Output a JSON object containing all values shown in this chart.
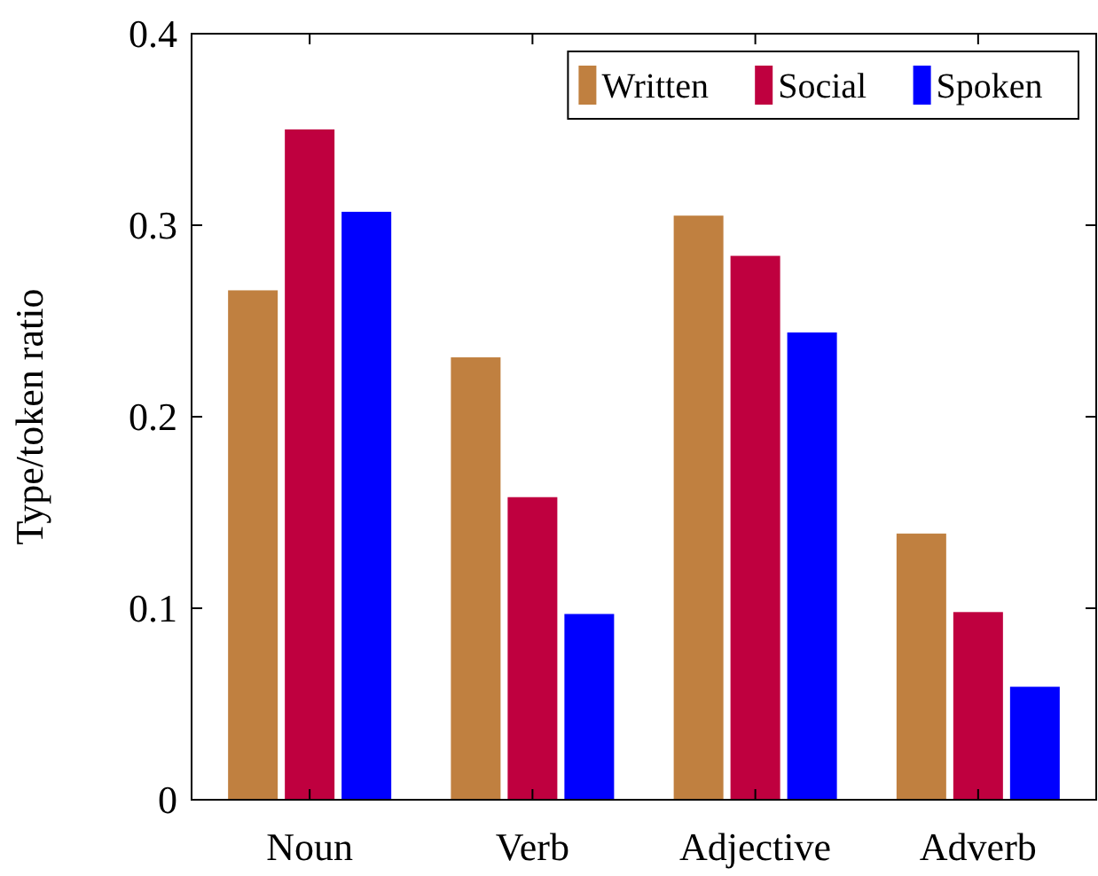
{
  "chart_data": {
    "type": "bar",
    "ylabel": "Type/token ratio",
    "categories": [
      "Noun",
      "Verb",
      "Adjective",
      "Adverb"
    ],
    "series": [
      {
        "name": "Written",
        "color": "#c08040",
        "values": [
          0.266,
          0.231,
          0.305,
          0.139
        ]
      },
      {
        "name": "Social",
        "color": "#bf003f",
        "values": [
          0.35,
          0.158,
          0.284,
          0.098
        ]
      },
      {
        "name": "Spoken",
        "color": "#0000ff",
        "values": [
          0.307,
          0.097,
          0.244,
          0.059
        ]
      }
    ],
    "ylim": [
      0,
      0.4
    ],
    "yticks": [
      0,
      0.1,
      0.2,
      0.3,
      0.4
    ],
    "grid": false,
    "legend": "top right"
  }
}
